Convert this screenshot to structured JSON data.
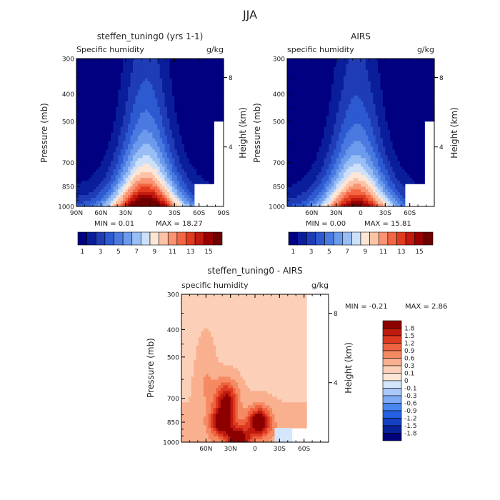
{
  "figure": {
    "title": "JJA"
  },
  "colors": {
    "abs_scale": [
      "#000080",
      "#0a1e9b",
      "#1f3cb6",
      "#2d5ad1",
      "#4a7ae0",
      "#6c9aec",
      "#99bef5",
      "#cde0fa",
      "#fde6d6",
      "#fcc3a6",
      "#f99372",
      "#f26644",
      "#e03b1f",
      "#c11a0f",
      "#990000",
      "#6e0000"
    ],
    "diff_scale": [
      "#00007a",
      "#08229a",
      "#1640c2",
      "#2460e0",
      "#4a86f0",
      "#7eaaf6",
      "#aac8fa",
      "#d4e6fc",
      "#fde6d6",
      "#fcd0b8",
      "#f9b08e",
      "#f58a62",
      "#ef6340",
      "#de3a20",
      "#bf1a0e",
      "#8c0000"
    ]
  },
  "chart_data": [
    {
      "type": "heatmap",
      "title": "steffen_tuning0 (yrs 1-1)",
      "left_label": "Specific humidity",
      "right_label": "g/kg",
      "ylabel": "Pressure (mb)",
      "ylabel_right": "Height (km)",
      "x_ticks": [
        "90N",
        "60N",
        "30N",
        "0",
        "30S",
        "60S",
        "90S"
      ],
      "y_ticks": [
        "300",
        "400",
        "500",
        "700",
        "850",
        "1000"
      ],
      "height_ticks": [
        "8",
        "4"
      ],
      "xlim": [
        90,
        -90
      ],
      "ylim": [
        1000,
        300
      ],
      "min_label": "MIN =   0.01",
      "max_label": "MAX =  18.27",
      "min": 0.01,
      "max": 18.27,
      "peak_lat": 5,
      "colorbar_labels": [
        "1",
        "3",
        "5",
        "7",
        "9",
        "11",
        "13",
        "15"
      ]
    },
    {
      "type": "heatmap",
      "title": "AIRS",
      "left_label": "specific humidity",
      "right_label": "g/kg",
      "ylabel": "Pressure (mb)",
      "ylabel_right": "Height (km)",
      "x_ticks": [
        "60N",
        "30N",
        "0",
        "30S",
        "60S"
      ],
      "y_ticks": [
        "300",
        "400",
        "500",
        "700",
        "850",
        "1000"
      ],
      "height_ticks": [
        "8",
        "4"
      ],
      "xlim": [
        90,
        -90
      ],
      "ylim": [
        1000,
        300
      ],
      "min_label": "MIN =   0.00",
      "max_label": "MAX =  15.81",
      "min": 0.0,
      "max": 15.81,
      "peak_lat": 5,
      "colorbar_labels": [
        "1",
        "3",
        "5",
        "7",
        "9",
        "11",
        "13",
        "15"
      ]
    },
    {
      "type": "heatmap",
      "title": "steffen_tuning0 - AIRS",
      "left_label": "specific humidity",
      "right_label": "g/kg",
      "ylabel": "Pressure (mb)",
      "ylabel_right": "Height (km)",
      "x_ticks": [
        "60N",
        "30N",
        "0",
        "30S",
        "60S"
      ],
      "y_ticks": [
        "300",
        "400",
        "500",
        "700",
        "850",
        "1000"
      ],
      "height_ticks": [
        "8",
        "4"
      ],
      "xlim": [
        90,
        -90
      ],
      "ylim": [
        1000,
        300
      ],
      "min_label": "MIN =   -0.21",
      "max_label": "MAX =   2.86",
      "min": -0.21,
      "max": 2.86,
      "hotspots": [
        {
          "lat": 40,
          "p": 850,
          "amp": 2.0
        },
        {
          "lat": -5,
          "p": 850,
          "amp": 2.0
        },
        {
          "lat": 20,
          "p": 980,
          "amp": 1.9
        },
        {
          "lat": 35,
          "p": 700,
          "amp": 1.5
        }
      ],
      "colorbar_labels": [
        "1.8",
        "1.5",
        "1.2",
        "0.9",
        "0.6",
        "0.3",
        "0.1",
        "0",
        "-0.1",
        "-0.3",
        "-0.6",
        "-0.9",
        "-1.2",
        "-1.5",
        "-1.8"
      ]
    }
  ]
}
